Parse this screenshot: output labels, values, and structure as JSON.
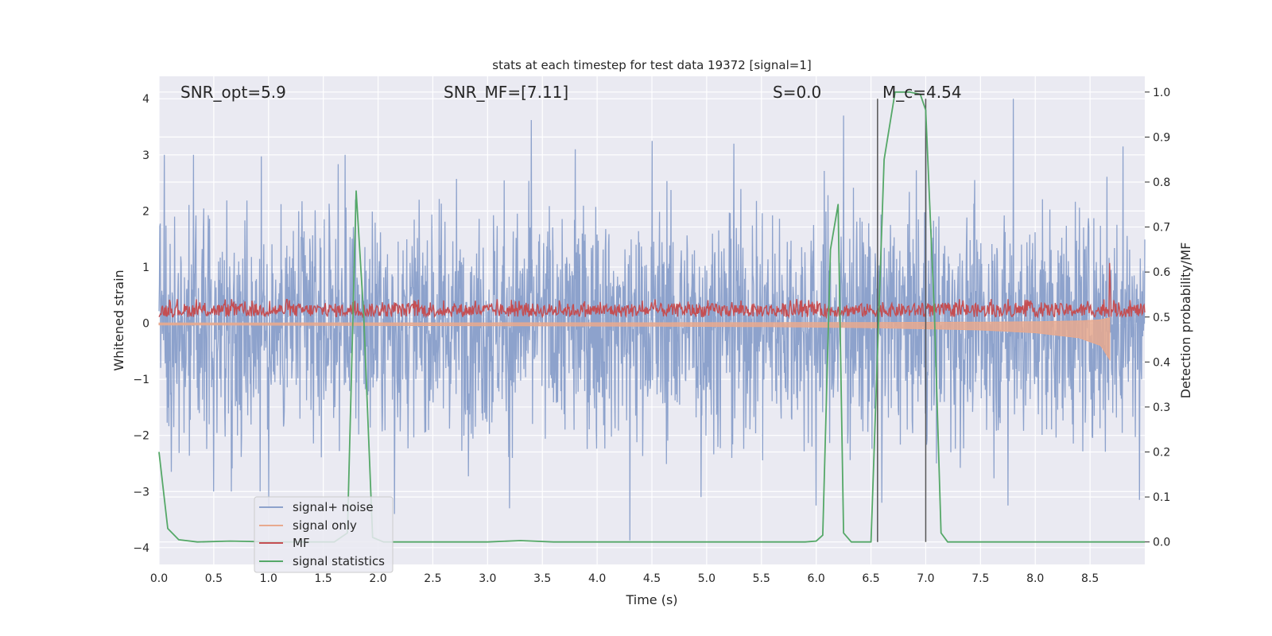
{
  "chart_data": {
    "type": "line",
    "title": "stats at each timestep for test data 19372 [signal=1]",
    "xlabel": "Time (s)",
    "ylabel_left": "Whitened strain",
    "ylabel_right": "Detection probability/MF",
    "xlim": [
      0,
      9.0
    ],
    "ylim_left": [
      -4.3,
      4.4
    ],
    "ylim_right": [
      -0.05,
      1.035
    ],
    "x_ticks": [
      "0.0",
      "0.5",
      "1.0",
      "1.5",
      "2.0",
      "2.5",
      "3.0",
      "3.5",
      "4.0",
      "4.5",
      "5.0",
      "5.5",
      "6.0",
      "6.5",
      "7.0",
      "7.5",
      "8.0",
      "8.5"
    ],
    "y_ticks_left": [
      "−4",
      "−3",
      "−2",
      "−1",
      "0",
      "1",
      "2",
      "3",
      "4"
    ],
    "y_ticks_right": [
      "0.0",
      "0.1",
      "0.2",
      "0.3",
      "0.4",
      "0.5",
      "0.6",
      "0.7",
      "0.8",
      "0.9",
      "1.0"
    ],
    "grid": true,
    "legend_position": "lower-left",
    "annotations": [
      {
        "text": "SNR_opt=5.9",
        "x": 0.2,
        "y": 4.05
      },
      {
        "text": "SNR_MF=[7.11]",
        "x": 2.6,
        "y": 4.05
      },
      {
        "text": "S=0.0",
        "x": 5.6,
        "y": 4.05
      },
      {
        "text": "M_c=4.54",
        "x": 6.6,
        "y": 4.05
      }
    ],
    "vertical_markers": [
      6.56,
      7.0
    ],
    "series": [
      {
        "name": "signal+ noise",
        "color": "#8da2cc",
        "axis": "left",
        "style": "dense-noise",
        "approx_std": 1.0,
        "peaks": [
          [
            0.05,
            3.0
          ],
          [
            1.0,
            3.1
          ],
          [
            1.7,
            3.0
          ],
          [
            3.4,
            3.62
          ],
          [
            3.8,
            3.1
          ],
          [
            4.5,
            3.25
          ],
          [
            5.25,
            3.2
          ],
          [
            6.25,
            3.7
          ],
          [
            7.0,
            3.8
          ],
          [
            7.8,
            4.0
          ],
          [
            8.8,
            3.15
          ]
        ],
        "troughs": [
          [
            0.5,
            -3.0
          ],
          [
            1.0,
            -3.3
          ],
          [
            2.15,
            -3.4
          ],
          [
            3.2,
            -3.3
          ],
          [
            4.3,
            -3.87
          ],
          [
            4.95,
            -3.1
          ],
          [
            6.0,
            -3.25
          ],
          [
            6.6,
            -3.2
          ],
          [
            7.75,
            -3.25
          ],
          [
            8.95,
            -3.15
          ]
        ]
      },
      {
        "name": "signal only",
        "color": "#e8a98e",
        "axis": "left",
        "style": "chirp",
        "x": [
          0,
          2.0,
          4.0,
          5.5,
          6.5,
          7.5,
          8.0,
          8.4,
          8.6,
          8.68
        ],
        "envelope": [
          0.03,
          0.04,
          0.05,
          0.06,
          0.08,
          0.12,
          0.17,
          0.26,
          0.4,
          0.65
        ]
      },
      {
        "name": "MF",
        "color": "#c44e52",
        "axis": "right",
        "style": "noisy-band",
        "baseline": 0.51,
        "band": [
          0.5,
          0.53
        ],
        "spikes": [
          [
            8.68,
            0.62
          ]
        ]
      },
      {
        "name": "signal statistics",
        "color": "#55a868",
        "axis": "right",
        "x": [
          0.0,
          0.08,
          0.18,
          0.35,
          0.65,
          1.05,
          1.6,
          1.72,
          1.8,
          1.87,
          1.95,
          2.05,
          3.0,
          3.3,
          3.6,
          5.9,
          6.0,
          6.06,
          6.13,
          6.2,
          6.25,
          6.32,
          6.5,
          6.62,
          6.72,
          6.85,
          6.95,
          7.0,
          7.08,
          7.14,
          7.2,
          9.0
        ],
        "y": [
          0.2,
          0.03,
          0.005,
          0.0,
          0.002,
          0.0,
          0.0,
          0.02,
          0.78,
          0.5,
          0.01,
          0.0,
          0.0,
          0.003,
          0.0,
          0.0,
          0.002,
          0.015,
          0.65,
          0.75,
          0.02,
          0.0,
          0.0,
          0.85,
          1.0,
          1.0,
          0.995,
          0.96,
          0.5,
          0.02,
          0.0,
          0.0
        ]
      }
    ]
  }
}
